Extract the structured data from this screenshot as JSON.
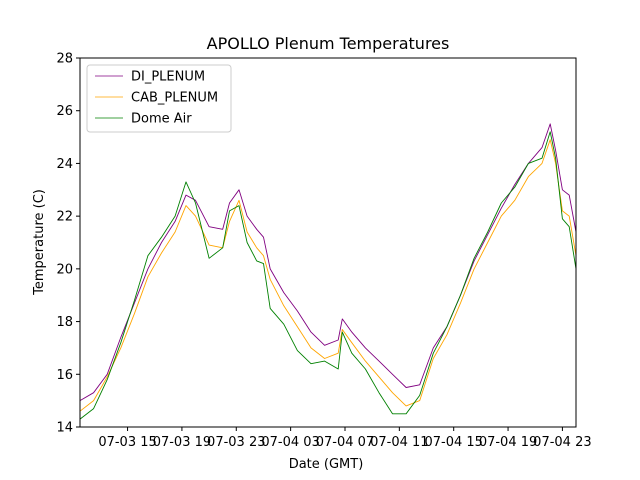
{
  "chart_data": {
    "type": "line",
    "title": "APOLLO Plenum Temperatures",
    "xlabel": "Date (GMT)",
    "ylabel": "Temperature (C)",
    "ylim": [
      14,
      28
    ],
    "xlim_hours": [
      0,
      36.5
    ],
    "x_unit": "hours since 2024-07-03 11:30 GMT (date axis)",
    "x_ticks": [
      {
        "label": "07-03 15",
        "hour": 3.5
      },
      {
        "label": "07-03 19",
        "hour": 7.5
      },
      {
        "label": "07-03 23",
        "hour": 11.5
      },
      {
        "label": "07-04 03",
        "hour": 15.5
      },
      {
        "label": "07-04 07",
        "hour": 19.5
      },
      {
        "label": "07-04 11",
        "hour": 23.5
      },
      {
        "label": "07-04 15",
        "hour": 27.5
      },
      {
        "label": "07-04 19",
        "hour": 31.5
      },
      {
        "label": "07-04 23",
        "hour": 35.5
      }
    ],
    "y_ticks": [
      14,
      16,
      18,
      20,
      22,
      24,
      26,
      28
    ],
    "grid": false,
    "legend_position": "top-left",
    "series": [
      {
        "name": "DI_PLENUM",
        "color": "#800080",
        "x": [
          0,
          1,
          2,
          3,
          4,
          5,
          6,
          7,
          7.8,
          8.5,
          9.5,
          10.5,
          11,
          11.7,
          12.3,
          13,
          13.5,
          14,
          15,
          16,
          17,
          18,
          19,
          19.3,
          20,
          21,
          22,
          23,
          24,
          25,
          26,
          27,
          28,
          29,
          30,
          31,
          32,
          33,
          34,
          34.6,
          35,
          35.5,
          36,
          36.5
        ],
        "values": [
          15.0,
          15.3,
          16.0,
          17.4,
          18.7,
          20.0,
          21.0,
          21.8,
          22.8,
          22.6,
          21.6,
          21.5,
          22.5,
          23.0,
          22.0,
          21.5,
          21.2,
          20.0,
          19.1,
          18.4,
          17.6,
          17.1,
          17.3,
          18.1,
          17.6,
          17.0,
          16.5,
          16.0,
          15.5,
          15.6,
          17.0,
          17.8,
          19.0,
          20.3,
          21.3,
          22.3,
          23.2,
          24.0,
          24.6,
          25.5,
          24.5,
          23.0,
          22.8,
          21.4
        ]
      },
      {
        "name": "CAB_PLENUM",
        "color": "#ffa500",
        "x": [
          0,
          1,
          2,
          3,
          4,
          5,
          6,
          7,
          7.8,
          8.5,
          9.5,
          10.5,
          11,
          11.7,
          12.3,
          13,
          13.5,
          14,
          15,
          16,
          17,
          18,
          19,
          19.3,
          20,
          21,
          22,
          23,
          24,
          25,
          26,
          27,
          28,
          29,
          30,
          31,
          32,
          33,
          34,
          34.6,
          35,
          35.5,
          36,
          36.5
        ],
        "values": [
          14.6,
          15.0,
          15.9,
          17.0,
          18.3,
          19.7,
          20.6,
          21.4,
          22.4,
          22.0,
          20.9,
          20.8,
          21.8,
          22.6,
          21.4,
          20.8,
          20.5,
          19.6,
          18.6,
          17.8,
          17.0,
          16.6,
          16.8,
          17.7,
          17.2,
          16.5,
          15.9,
          15.3,
          14.8,
          15.0,
          16.6,
          17.5,
          18.7,
          20.0,
          21.0,
          22.0,
          22.6,
          23.5,
          24.0,
          24.9,
          24.0,
          22.2,
          22.0,
          20.5
        ]
      },
      {
        "name": "Dome Air",
        "color": "#008000",
        "x": [
          0,
          1,
          2,
          3,
          4,
          5,
          6,
          7,
          7.8,
          8.5,
          9.5,
          10.5,
          11,
          11.7,
          12.3,
          13,
          13.5,
          14,
          15,
          16,
          17,
          18,
          19,
          19.3,
          20,
          21,
          22,
          23,
          24,
          25,
          26,
          27,
          28,
          29,
          30,
          31,
          32,
          33,
          34,
          34.6,
          35,
          35.5,
          36,
          36.5
        ],
        "values": [
          14.3,
          14.7,
          15.8,
          17.2,
          18.8,
          20.5,
          21.2,
          22.0,
          23.3,
          22.5,
          20.4,
          20.8,
          22.2,
          22.4,
          21.0,
          20.3,
          20.2,
          18.5,
          17.9,
          16.9,
          16.4,
          16.5,
          16.2,
          17.6,
          16.8,
          16.2,
          15.3,
          14.5,
          14.5,
          15.2,
          16.8,
          17.8,
          19.0,
          20.4,
          21.4,
          22.5,
          23.1,
          24.0,
          24.2,
          25.2,
          24.2,
          21.9,
          21.6,
          20.0
        ]
      }
    ]
  }
}
